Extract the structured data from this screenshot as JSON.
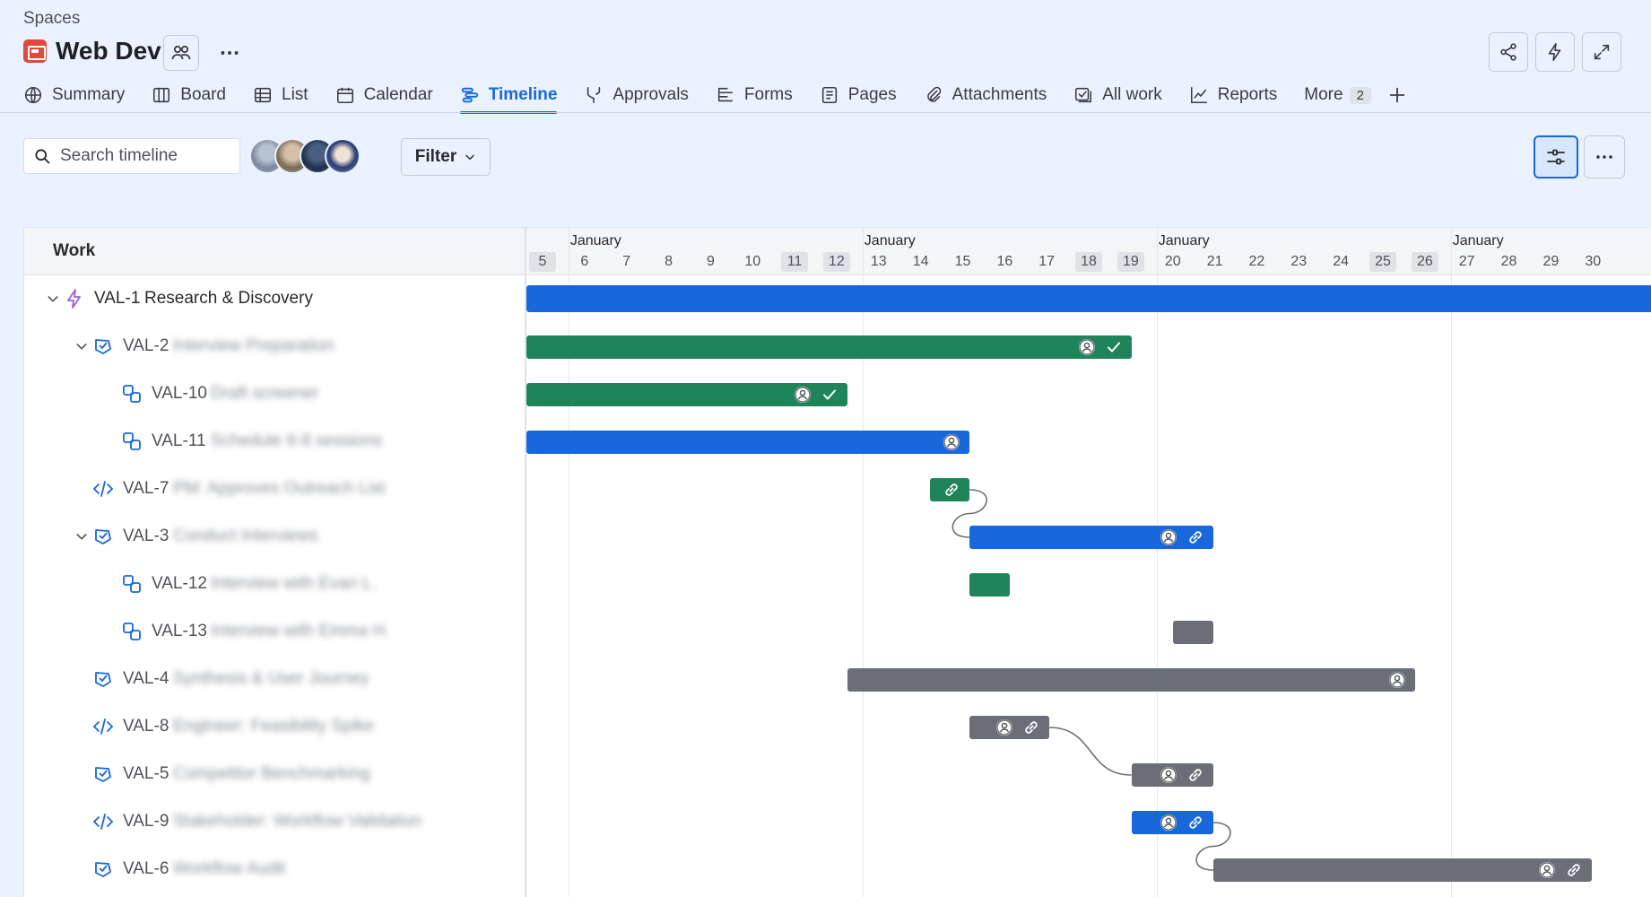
{
  "header": {
    "breadcrumb": "Spaces",
    "project_title": "Web Dev",
    "project_icon": "project-icon",
    "accent": "#1868db"
  },
  "tabs": [
    {
      "label": "Summary",
      "icon": "globe-icon"
    },
    {
      "label": "Board",
      "icon": "board-icon"
    },
    {
      "label": "List",
      "icon": "list-icon"
    },
    {
      "label": "Calendar",
      "icon": "calendar-icon"
    },
    {
      "label": "Timeline",
      "icon": "timeline-icon",
      "active": true
    },
    {
      "label": "Approvals",
      "icon": "approvals-icon"
    },
    {
      "label": "Forms",
      "icon": "forms-icon"
    },
    {
      "label": "Pages",
      "icon": "pages-icon"
    },
    {
      "label": "Attachments",
      "icon": "attachment-icon"
    },
    {
      "label": "All work",
      "icon": "all-work-icon"
    },
    {
      "label": "Reports",
      "icon": "reports-icon"
    },
    {
      "label": "More",
      "count": "2"
    }
  ],
  "toolbar": {
    "search_placeholder": "Search timeline",
    "filter_label": "Filter"
  },
  "timeline": {
    "work_header": "Work",
    "month_label": "January",
    "days": [
      {
        "d": "5",
        "weekend": true
      },
      {
        "d": "6"
      },
      {
        "d": "7"
      },
      {
        "d": "8"
      },
      {
        "d": "9"
      },
      {
        "d": "10"
      },
      {
        "d": "11",
        "weekend": true
      },
      {
        "d": "12",
        "weekend": true
      },
      {
        "d": "13"
      },
      {
        "d": "14"
      },
      {
        "d": "15"
      },
      {
        "d": "16"
      },
      {
        "d": "17"
      },
      {
        "d": "18",
        "weekend": true
      },
      {
        "d": "19",
        "weekend": true
      },
      {
        "d": "20"
      },
      {
        "d": "21"
      },
      {
        "d": "22"
      },
      {
        "d": "23"
      },
      {
        "d": "24"
      },
      {
        "d": "25",
        "weekend": true
      },
      {
        "d": "26",
        "weekend": true
      },
      {
        "d": "27"
      },
      {
        "d": "28"
      },
      {
        "d": "29"
      },
      {
        "d": "30"
      }
    ],
    "items": [
      {
        "key": "VAL-1",
        "summary": "Research & Discovery",
        "type": "epic",
        "level": 0,
        "expanded": true,
        "blurred": false,
        "status": "blue"
      },
      {
        "key": "VAL-2",
        "summary": "Interview Preparation",
        "type": "task",
        "level": 1,
        "expanded": true,
        "blurred": true,
        "status": "green",
        "done": true
      },
      {
        "key": "VAL-10",
        "summary": "Draft screener",
        "type": "subtask",
        "level": 2,
        "blurred": true,
        "status": "green",
        "done": true
      },
      {
        "key": "VAL-11",
        "summary": "Schedule 6-8 sessions",
        "type": "subtask",
        "level": 2,
        "blurred": true,
        "status": "blue"
      },
      {
        "key": "VAL-7",
        "summary": "PM: Approves Outreach List",
        "type": "code",
        "level": 1,
        "blurred": true,
        "status": "green"
      },
      {
        "key": "VAL-3",
        "summary": "Conduct Interviews",
        "type": "task",
        "level": 1,
        "expanded": true,
        "blurred": true,
        "status": "blue"
      },
      {
        "key": "VAL-12",
        "summary": "Interview with Evan L.",
        "type": "subtask",
        "level": 2,
        "blurred": true,
        "status": "green"
      },
      {
        "key": "VAL-13",
        "summary": "Interview with Emma H.",
        "type": "subtask",
        "level": 2,
        "blurred": true,
        "status": "gray"
      },
      {
        "key": "VAL-4",
        "summary": "Synthesis & User Journey",
        "type": "task",
        "level": 1,
        "blurred": true,
        "status": "gray"
      },
      {
        "key": "VAL-8",
        "summary": "Engineer: Feasibility Spike",
        "type": "code",
        "level": 1,
        "blurred": true,
        "status": "gray"
      },
      {
        "key": "VAL-5",
        "summary": "Competitor Benchmarking",
        "type": "task",
        "level": 1,
        "blurred": true,
        "status": "gray"
      },
      {
        "key": "VAL-9",
        "summary": "Stakeholder: Workflow Validation",
        "type": "code",
        "level": 1,
        "blurred": true,
        "status": "blue"
      },
      {
        "key": "VAL-6",
        "summary": "Workflow Audit",
        "type": "task",
        "level": 1,
        "blurred": true,
        "status": "gray"
      }
    ],
    "status_colors": {
      "blue": "#1868db",
      "green": "#1f845a",
      "gray": "#6b6e76"
    }
  }
}
